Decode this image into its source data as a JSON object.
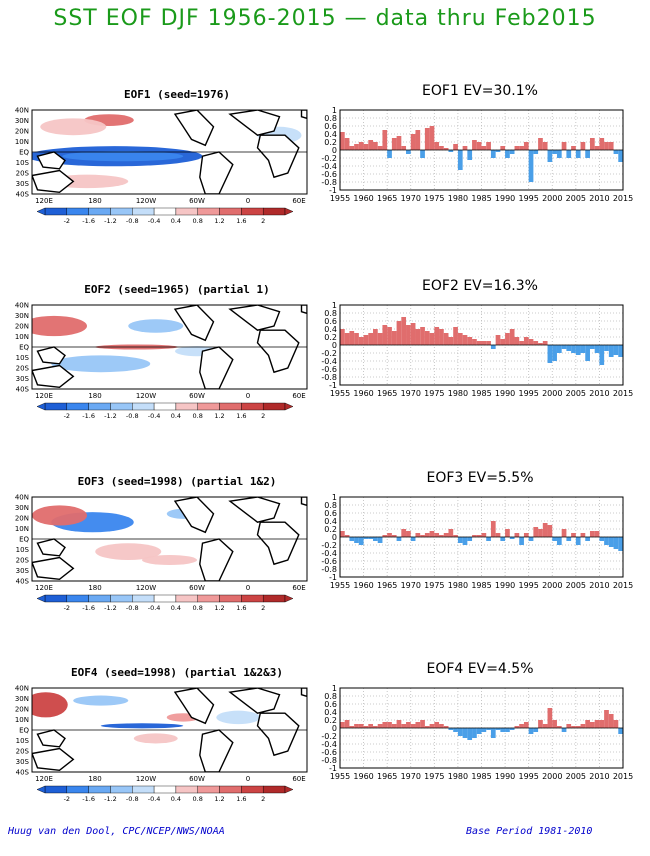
{
  "page_title": "SST EOF DJF 1956-2015 — data thru Feb2015",
  "credit_left": "Huug van den Dool, CPC/NCEP/NWS/NOAA",
  "credit_right": "Base Period 1981-2010",
  "colors": {
    "positive": "#e06d6d",
    "negative": "#4a9fe8",
    "title_green": "#1a9a1a",
    "credit_blue": "#0000cc"
  },
  "map": {
    "lat_labels": [
      "40N",
      "30N",
      "20N",
      "10N",
      "EQ",
      "10S",
      "20S",
      "30S",
      "40S"
    ],
    "lon_labels": [
      "120E",
      "180",
      "120W",
      "60W",
      "0",
      "60E"
    ],
    "colorbar_labels": [
      "-2",
      "-1.6",
      "-1.2",
      "-0.8",
      "-0.4",
      "0.4",
      "0.8",
      "1.2",
      "1.6",
      "2"
    ],
    "colorbar_colors": [
      "#1e5fd6",
      "#3a86ee",
      "#6aa9f3",
      "#98c6f7",
      "#c4def9",
      "#ffffff",
      "#f6c5c5",
      "#ef9999",
      "#e06d6d",
      "#cc4444",
      "#b02a2a"
    ]
  },
  "panels": [
    {
      "map_title": "EOF1  (seed=1976)",
      "ts_title": "EOF1  EV=30.1%"
    },
    {
      "map_title": "EOF2  (seed=1965) (partial 1)",
      "ts_title": "EOF2  EV=16.3%"
    },
    {
      "map_title": "EOF3  (seed=1998) (partial 1&2)",
      "ts_title": "EOF3  EV=5.5%"
    },
    {
      "map_title": "EOF4  (seed=1998) (partial 1&2&3)",
      "ts_title": "EOF4  EV=4.5%"
    }
  ],
  "chart_data": [
    {
      "type": "bar",
      "title": "EOF1  EV=30.1%",
      "xlabel": "",
      "ylabel": "",
      "ylim": [
        -1,
        1
      ],
      "ytick_labels": [
        "1",
        "0.8",
        "0.6",
        "0.4",
        "0.2",
        "0",
        "-0.2",
        "-0.4",
        "-0.6",
        "-0.8",
        "-1"
      ],
      "xtick_labels": [
        "1955",
        "1960",
        "1965",
        "1970",
        "1975",
        "1980",
        "1985",
        "1990",
        "1995",
        "2000",
        "2005",
        "2010",
        "2015"
      ],
      "x": [
        1956,
        1957,
        1958,
        1959,
        1960,
        1961,
        1962,
        1963,
        1964,
        1965,
        1966,
        1967,
        1968,
        1969,
        1970,
        1971,
        1972,
        1973,
        1974,
        1975,
        1976,
        1977,
        1978,
        1979,
        1980,
        1981,
        1982,
        1983,
        1984,
        1985,
        1986,
        1987,
        1988,
        1989,
        1990,
        1991,
        1992,
        1993,
        1994,
        1995,
        1996,
        1997,
        1998,
        1999,
        2000,
        2001,
        2002,
        2003,
        2004,
        2005,
        2006,
        2007,
        2008,
        2009,
        2010,
        2011,
        2012,
        2013,
        2014,
        2015
      ],
      "values": [
        0.45,
        0.3,
        0.1,
        0.15,
        0.2,
        0.15,
        0.25,
        0.2,
        0.1,
        0.5,
        -0.2,
        0.3,
        0.35,
        0.1,
        -0.1,
        0.4,
        0.5,
        -0.2,
        0.55,
        0.6,
        0.2,
        0.1,
        0.05,
        -0.05,
        0.15,
        -0.5,
        0.1,
        -0.25,
        0.25,
        0.2,
        0.1,
        0.2,
        -0.2,
        -0.05,
        0.1,
        -0.2,
        -0.1,
        0.1,
        0.1,
        0.2,
        -0.8,
        -0.1,
        0.3,
        0.2,
        -0.3,
        -0.1,
        -0.2,
        0.2,
        -0.2,
        0.1,
        -0.2,
        0.2,
        -0.2,
        0.3,
        0.1,
        0.3,
        0.2,
        0.2,
        -0.1,
        -0.3
      ]
    },
    {
      "type": "bar",
      "title": "EOF2  EV=16.3%",
      "xlabel": "",
      "ylabel": "",
      "ylim": [
        -1,
        1
      ],
      "ytick_labels": [
        "1",
        "0.8",
        "0.6",
        "0.4",
        "0.2",
        "0",
        "-0.2",
        "-0.4",
        "-0.6",
        "-0.8",
        "-1"
      ],
      "xtick_labels": [
        "1955",
        "1960",
        "1965",
        "1970",
        "1975",
        "1980",
        "1985",
        "1990",
        "1995",
        "2000",
        "2005",
        "2010",
        "2015"
      ],
      "x": [
        1956,
        1957,
        1958,
        1959,
        1960,
        1961,
        1962,
        1963,
        1964,
        1965,
        1966,
        1967,
        1968,
        1969,
        1970,
        1971,
        1972,
        1973,
        1974,
        1975,
        1976,
        1977,
        1978,
        1979,
        1980,
        1981,
        1982,
        1983,
        1984,
        1985,
        1986,
        1987,
        1988,
        1989,
        1990,
        1991,
        1992,
        1993,
        1994,
        1995,
        1996,
        1997,
        1998,
        1999,
        2000,
        2001,
        2002,
        2003,
        2004,
        2005,
        2006,
        2007,
        2008,
        2009,
        2010,
        2011,
        2012,
        2013,
        2014,
        2015
      ],
      "values": [
        0.4,
        0.3,
        0.35,
        0.3,
        0.2,
        0.25,
        0.3,
        0.4,
        0.3,
        0.5,
        0.45,
        0.35,
        0.6,
        0.7,
        0.5,
        0.55,
        0.4,
        0.45,
        0.35,
        0.3,
        0.45,
        0.4,
        0.3,
        0.2,
        0.45,
        0.3,
        0.25,
        0.2,
        0.15,
        0.1,
        0.1,
        0.1,
        -0.1,
        0.25,
        0.15,
        0.3,
        0.4,
        0.2,
        0.1,
        0.2,
        0.15,
        0.1,
        0.05,
        0.1,
        -0.45,
        -0.4,
        -0.2,
        -0.1,
        -0.15,
        -0.2,
        -0.25,
        -0.2,
        -0.4,
        -0.1,
        -0.2,
        -0.5,
        -0.15,
        -0.3,
        -0.25,
        -0.3
      ]
    },
    {
      "type": "bar",
      "title": "EOF3  EV=5.5%",
      "xlabel": "",
      "ylabel": "",
      "ylim": [
        -1,
        1
      ],
      "ytick_labels": [
        "1",
        "0.8",
        "0.6",
        "0.4",
        "0.2",
        "0",
        "-0.2",
        "-0.4",
        "-0.6",
        "-0.8",
        "-1"
      ],
      "xtick_labels": [
        "1955",
        "1960",
        "1965",
        "1970",
        "1975",
        "1980",
        "1985",
        "1990",
        "1995",
        "2000",
        "2005",
        "2010",
        "2015"
      ],
      "x": [
        1956,
        1957,
        1958,
        1959,
        1960,
        1961,
        1962,
        1963,
        1964,
        1965,
        1966,
        1967,
        1968,
        1969,
        1970,
        1971,
        1972,
        1973,
        1974,
        1975,
        1976,
        1977,
        1978,
        1979,
        1980,
        1981,
        1982,
        1983,
        1984,
        1985,
        1986,
        1987,
        1988,
        1989,
        1990,
        1991,
        1992,
        1993,
        1994,
        1995,
        1996,
        1997,
        1998,
        1999,
        2000,
        2001,
        2002,
        2003,
        2004,
        2005,
        2006,
        2007,
        2008,
        2009,
        2010,
        2011,
        2012,
        2013,
        2014,
        2015
      ],
      "values": [
        0.15,
        0.05,
        -0.1,
        -0.15,
        -0.2,
        -0.05,
        -0.05,
        -0.1,
        -0.15,
        0.05,
        0.1,
        0.05,
        -0.1,
        0.2,
        0.15,
        -0.1,
        0.1,
        0.05,
        0.1,
        0.15,
        0.1,
        0.05,
        0.1,
        0.2,
        0.05,
        -0.15,
        -0.2,
        -0.1,
        0.05,
        0.05,
        0.1,
        -0.1,
        0.4,
        0.1,
        -0.1,
        0.2,
        -0.05,
        0.1,
        -0.2,
        0.1,
        -0.1,
        0.25,
        0.2,
        0.35,
        0.3,
        -0.1,
        -0.2,
        0.2,
        -0.1,
        0.1,
        -0.2,
        0.1,
        -0.1,
        0.15,
        0.15,
        -0.1,
        -0.2,
        -0.25,
        -0.3,
        -0.35
      ]
    },
    {
      "type": "bar",
      "title": "EOF4  EV=4.5%",
      "xlabel": "",
      "ylabel": "",
      "ylim": [
        -1,
        1
      ],
      "ytick_labels": [
        "1",
        "0.8",
        "0.6",
        "0.4",
        "0.2",
        "0",
        "-0.2",
        "-0.4",
        "-0.6",
        "-0.8",
        "-1"
      ],
      "xtick_labels": [
        "1955",
        "1960",
        "1965",
        "1970",
        "1975",
        "1980",
        "1985",
        "1990",
        "1995",
        "2000",
        "2005",
        "2010",
        "2015"
      ],
      "x": [
        1956,
        1957,
        1958,
        1959,
        1960,
        1961,
        1962,
        1963,
        1964,
        1965,
        1966,
        1967,
        1968,
        1969,
        1970,
        1971,
        1972,
        1973,
        1974,
        1975,
        1976,
        1977,
        1978,
        1979,
        1980,
        1981,
        1982,
        1983,
        1984,
        1985,
        1986,
        1987,
        1988,
        1989,
        1990,
        1991,
        1992,
        1993,
        1994,
        1995,
        1996,
        1997,
        1998,
        1999,
        2000,
        2001,
        2002,
        2003,
        2004,
        2005,
        2006,
        2007,
        2008,
        2009,
        2010,
        2011,
        2012,
        2013,
        2014,
        2015
      ],
      "values": [
        0.15,
        0.2,
        0.05,
        0.1,
        0.1,
        0.05,
        0.1,
        0.05,
        0.1,
        0.15,
        0.15,
        0.1,
        0.2,
        0.1,
        0.15,
        0.1,
        0.15,
        0.2,
        0.05,
        0.1,
        0.15,
        0.1,
        0.05,
        -0.05,
        -0.1,
        -0.2,
        -0.25,
        -0.3,
        -0.25,
        -0.15,
        -0.1,
        -0.05,
        -0.25,
        -0.05,
        -0.1,
        -0.1,
        -0.05,
        0.05,
        0.1,
        0.15,
        -0.15,
        -0.1,
        0.2,
        0.1,
        0.5,
        0.2,
        0.05,
        -0.1,
        0.1,
        0.05,
        0.05,
        0.1,
        0.2,
        0.15,
        0.2,
        0.2,
        0.45,
        0.35,
        0.2,
        -0.15
      ]
    }
  ]
}
